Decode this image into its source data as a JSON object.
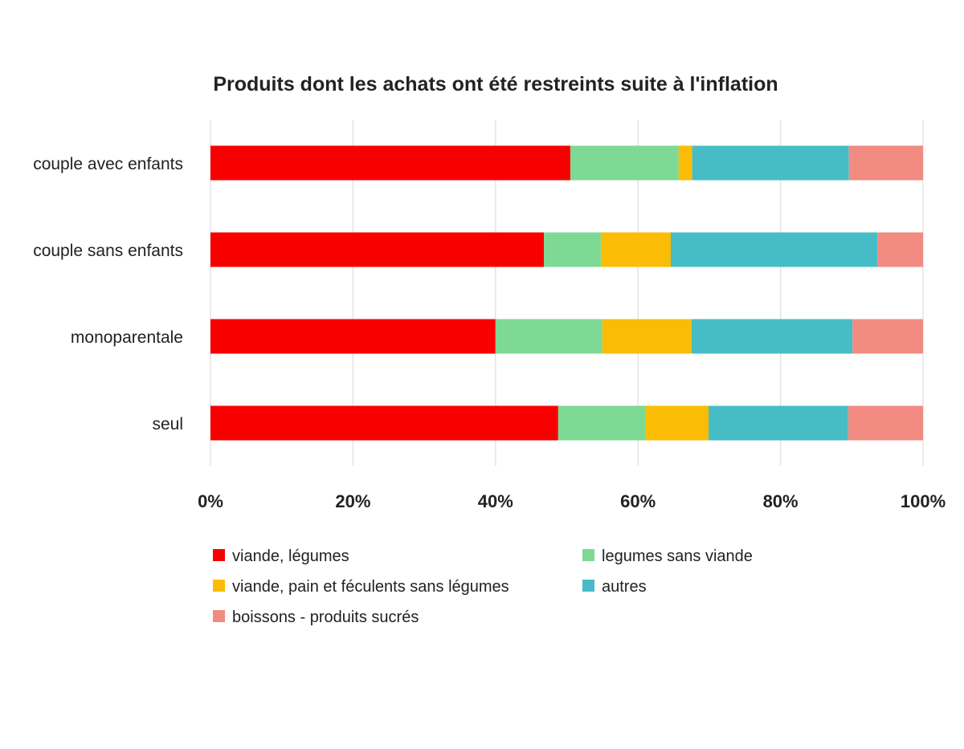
{
  "chart_data": {
    "type": "bar",
    "orientation": "horizontal",
    "stacked": "percent",
    "title": "Produits dont les achats ont été restreints suite à l'inflation",
    "categories": [
      "couple avec enfants",
      "couple sans enfants",
      "monoparentale",
      "seul"
    ],
    "series": [
      {
        "name": "viande, légumes",
        "color": "#f90000",
        "values": [
          50.5,
          46.8,
          40.0,
          48.8
        ]
      },
      {
        "name": "legumes sans viande",
        "color": "#7dd993",
        "values": [
          15.2,
          8.0,
          15.0,
          12.2
        ]
      },
      {
        "name": "viande, pain et féculents sans légumes",
        "color": "#fbbc05",
        "values": [
          1.9,
          9.8,
          12.5,
          8.9
        ]
      },
      {
        "name": "autres",
        "color": "#46bdc6",
        "values": [
          22.0,
          29.0,
          22.6,
          19.6
        ]
      },
      {
        "name": "boissons - produits sucrés",
        "color": "#f28b82",
        "values": [
          10.4,
          6.4,
          9.9,
          10.5
        ]
      }
    ],
    "xlim": [
      0,
      100
    ],
    "xticks": [
      "0%",
      "20%",
      "40%",
      "60%",
      "80%",
      "100%"
    ],
    "grid": true,
    "legend_position": "bottom"
  }
}
